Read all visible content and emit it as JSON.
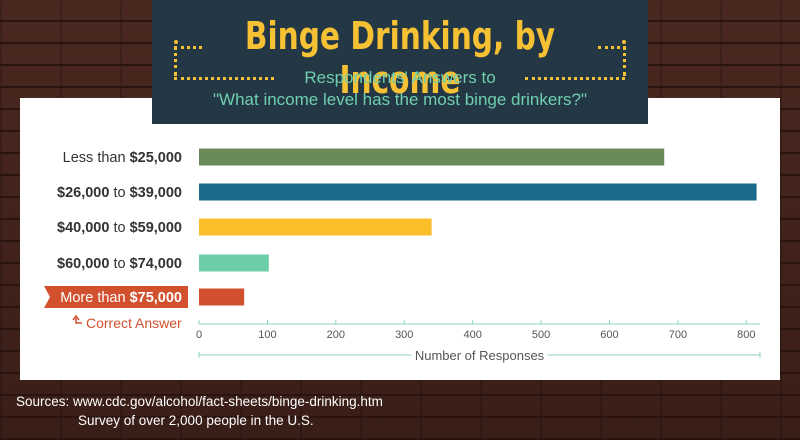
{
  "header": {
    "title": "Binge Drinking, by Income",
    "subtitle_line1": "Respondents' Answers to",
    "subtitle_line2": "\"What income level has the most binge drinkers?\""
  },
  "chart_data": {
    "type": "bar",
    "orientation": "horizontal",
    "categories": [
      {
        "pre": "Less than ",
        "bold": "$25,000",
        "post": ""
      },
      {
        "pre": "",
        "bold": "$26,000",
        "post": " to ",
        "bold2": "$39,000"
      },
      {
        "pre": "",
        "bold": "$40,000",
        "post": " to ",
        "bold2": "$59,000"
      },
      {
        "pre": "",
        "bold": "$60,000",
        "post": " to ",
        "bold2": "$74,000"
      },
      {
        "pre": "More than ",
        "bold": "$75,000",
        "post": ""
      }
    ],
    "values": [
      680,
      815,
      340,
      102,
      66
    ],
    "colors": [
      "#6b8a5a",
      "#1b6c8c",
      "#fbbd2a",
      "#6ccda8",
      "#d1512e"
    ],
    "xlim": [
      0,
      820
    ],
    "xticks": [
      0,
      100,
      200,
      300,
      400,
      500,
      600,
      700,
      800
    ],
    "xlabel": "Number of Responses",
    "highlight_index": 4,
    "highlight_color": "#d1512e",
    "annotation": "Correct Answer"
  },
  "sources": {
    "line1": "Sources: www.cdc.gov/alcohol/fact-sheets/binge-drinking.htm",
    "line2": "Survey of over 2,000 people in the U.S."
  }
}
